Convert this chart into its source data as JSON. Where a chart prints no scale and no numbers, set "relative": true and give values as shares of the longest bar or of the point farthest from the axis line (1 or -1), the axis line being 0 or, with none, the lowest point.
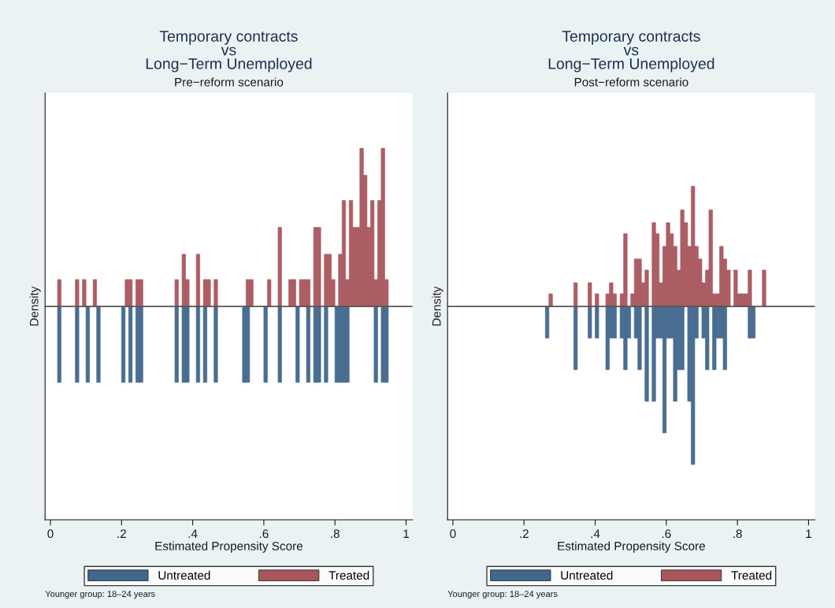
{
  "chart_data": [
    {
      "type": "bar",
      "title": "Temporary contracts\nvs\nLong−Term Unemployed",
      "subtitle": "Pre−reform scenario",
      "xlabel": "Estimated Propensity Score",
      "ylabel": "Density",
      "relative": true,
      "xlim": [
        -0.015,
        1.018
      ],
      "xticks": [
        0,
        {
          "value": 0.2,
          "label": ".2"
        },
        {
          "value": 0.4,
          "label": ".4"
        },
        {
          "value": 0.6,
          "label": ".6"
        },
        {
          "value": 0.8,
          "label": ".8"
        },
        1
      ],
      "tick_labels": "x",
      "legend": "bottom",
      "annotations": [
        "Younger group: 18–24 years"
      ],
      "series": [
        {
          "name": "Untreated",
          "color": "#41678c",
          "x": [
            0.025,
            0.075,
            0.105,
            0.135,
            0.205,
            0.225,
            0.245,
            0.255,
            0.355,
            0.375,
            0.385,
            0.415,
            0.435,
            0.465,
            0.545,
            0.555,
            0.605,
            0.645,
            0.695,
            0.725,
            0.745,
            0.755,
            0.775,
            0.805,
            0.815,
            0.825,
            0.835,
            0.915,
            0.935,
            0.945
          ],
          "values": [
            -0.48,
            -0.48,
            -0.48,
            -0.48,
            -0.48,
            -0.48,
            -0.48,
            -0.48,
            -0.48,
            -0.48,
            -0.48,
            -0.48,
            -0.48,
            -0.48,
            -0.48,
            -0.48,
            -0.48,
            -0.48,
            -0.48,
            -0.48,
            -0.48,
            -0.48,
            -0.48,
            -0.48,
            -0.48,
            -0.48,
            -0.48,
            -0.48,
            -0.48,
            -0.48
          ]
        },
        {
          "name": "Treated",
          "color": "#a8565c",
          "x": [
            0.025,
            0.075,
            0.095,
            0.125,
            0.215,
            0.225,
            0.245,
            0.255,
            0.355,
            0.375,
            0.385,
            0.415,
            0.435,
            0.445,
            0.465,
            0.555,
            0.565,
            0.615,
            0.645,
            0.675,
            0.685,
            0.705,
            0.715,
            0.725,
            0.745,
            0.755,
            0.775,
            0.785,
            0.795,
            0.815,
            0.825,
            0.835,
            0.845,
            0.855,
            0.865,
            0.875,
            0.885,
            0.895,
            0.905,
            0.915,
            0.925,
            0.935,
            0.945
          ],
          "values": [
            0.17,
            0.17,
            0.17,
            0.17,
            0.17,
            0.17,
            0.17,
            0.17,
            0.17,
            0.33,
            0.17,
            0.33,
            0.17,
            0.17,
            0.17,
            0.17,
            0.17,
            0.17,
            0.5,
            0.17,
            0.17,
            0.17,
            0.17,
            0.17,
            0.5,
            0.5,
            0.33,
            0.33,
            0.17,
            0.33,
            0.67,
            0.17,
            0.67,
            0.5,
            0.5,
            1,
            0.83,
            0.5,
            0.67,
            0.17,
            0.67,
            1,
            0.17
          ]
        }
      ]
    },
    {
      "type": "bar",
      "title": "Temporary contracts\nvs\nLong−Term Unemployed",
      "subtitle": "Post−reform scenario",
      "xlabel": "Estimated Propensity Score",
      "ylabel": "Density",
      "relative": true,
      "xlim": [
        -0.015,
        1.018
      ],
      "xticks": [
        0,
        {
          "value": 0.2,
          "label": ".2"
        },
        {
          "value": 0.4,
          "label": ".4"
        },
        {
          "value": 0.6,
          "label": ".6"
        },
        {
          "value": 0.8,
          "label": ".8"
        },
        1
      ],
      "tick_labels": "x",
      "legend": "bottom",
      "annotations": [
        "Younger group: 18–24 years"
      ],
      "series": [
        {
          "name": "Untreated",
          "color": "#41678c",
          "x": [
            0.265,
            0.345,
            0.385,
            0.405,
            0.435,
            0.445,
            0.455,
            0.475,
            0.485,
            0.495,
            0.515,
            0.525,
            0.545,
            0.565,
            0.575,
            0.585,
            0.595,
            0.605,
            0.615,
            0.625,
            0.635,
            0.645,
            0.665,
            0.675,
            0.685,
            0.705,
            0.715,
            0.735,
            0.745,
            0.755,
            0.765,
            0.835,
            0.845
          ],
          "values": [
            -0.2,
            -0.4,
            -0.2,
            -0.2,
            -0.4,
            -0.2,
            -0.2,
            -0.2,
            -0.4,
            -0.2,
            -0.2,
            -0.4,
            -0.6,
            -0.6,
            -0.2,
            -0.2,
            -0.8,
            -0.2,
            -0.2,
            -0.6,
            -0.4,
            -0.4,
            -0.6,
            -1,
            -0.2,
            -0.2,
            -0.4,
            -0.4,
            -0.2,
            -0.2,
            -0.4,
            -0.2,
            -0.2
          ]
        },
        {
          "name": "Treated",
          "color": "#a8565c",
          "x": [
            0.275,
            0.345,
            0.385,
            0.405,
            0.435,
            0.445,
            0.455,
            0.475,
            0.485,
            0.505,
            0.515,
            0.525,
            0.535,
            0.545,
            0.565,
            0.575,
            0.585,
            0.595,
            0.605,
            0.615,
            0.625,
            0.635,
            0.645,
            0.655,
            0.665,
            0.675,
            0.685,
            0.695,
            0.705,
            0.715,
            0.725,
            0.735,
            0.745,
            0.755,
            0.765,
            0.775,
            0.795,
            0.805,
            0.815,
            0.825,
            0.835,
            0.875
          ],
          "values": [
            0.08,
            0.15,
            0.15,
            0.08,
            0.08,
            0.15,
            0.08,
            0.08,
            0.46,
            0.08,
            0.3,
            0.3,
            0.15,
            0.23,
            0.53,
            0.46,
            0.15,
            0.38,
            0.53,
            0.46,
            0.38,
            0.23,
            0.61,
            0.53,
            0.38,
            0.76,
            0.38,
            0.3,
            0.15,
            0.23,
            0.61,
            0.08,
            0.08,
            0.38,
            0.3,
            0.23,
            0.23,
            0.08,
            0.08,
            0.08,
            0.23,
            0.23
          ]
        }
      ]
    }
  ]
}
